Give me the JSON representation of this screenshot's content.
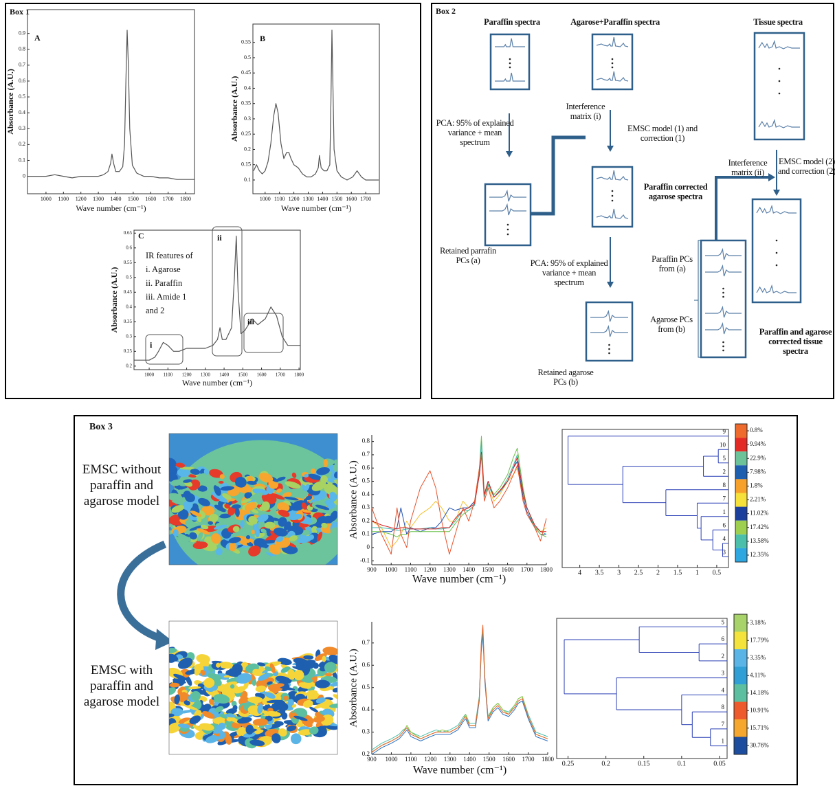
{
  "box_titles": [
    "Box 1",
    "Box 2",
    "Box 3"
  ],
  "diagram": {
    "texts": [
      "Paraffin spectra",
      "Agarose+Paraffin spectra",
      "Tissue spectra",
      "PCA: 95% of explained variance + mean spectrum",
      "Interference matrix (i)",
      "EMSC model (1) and correction (1)",
      "Retained parrafin PCs (a)",
      "Paraffin corrected agarose spectra",
      "PCA: 95% of explained variance + mean spectrum",
      "Retained agarose PCs (b)",
      "Interference matrix (ii)",
      "EMSC model (2) and correction (2)",
      "Paraffin PCs from (a)",
      "Agarose PCs from (b)",
      "Paraffin and agarose corrected tissue spectra"
    ]
  },
  "box3": {
    "before": "EMSC without paraffin and agarose model",
    "after": "EMSC with paraffin and agarose model"
  },
  "chart_data": [
    {
      "type": "line",
      "label": "A",
      "color": "#555555",
      "x": [
        900,
        950,
        1000,
        1050,
        1100,
        1150,
        1200,
        1250,
        1300,
        1330,
        1355,
        1370,
        1378,
        1388,
        1400,
        1420,
        1440,
        1450,
        1458,
        1465,
        1472,
        1480,
        1495,
        1520,
        1560,
        1600,
        1650,
        1700,
        1750,
        1800,
        1850
      ],
      "values": [
        0,
        0,
        0,
        0.01,
        0,
        -0.01,
        0,
        0,
        0,
        0.01,
        0.03,
        0.08,
        0.14,
        0.08,
        0.03,
        0.03,
        0.06,
        0.2,
        0.6,
        0.92,
        0.7,
        0.3,
        0.07,
        0.02,
        0,
        0,
        -0.01,
        -0.01,
        -0.02,
        -0.02,
        -0.02
      ],
      "xlim": [
        894,
        1851
      ],
      "ylim": [
        -0.11,
        1.05
      ],
      "xticks": [
        1000,
        1100,
        1200,
        1300,
        1400,
        1500,
        1600,
        1700,
        1800
      ],
      "yticks": [
        0,
        0.1,
        0.2,
        0.3,
        0.4,
        0.5,
        0.6,
        0.7,
        0.8,
        0.9
      ],
      "xlabel": "Wave number (cm⁻¹)",
      "ylabel": "Absorbance (A.U.)"
    },
    {
      "type": "line",
      "label": "B",
      "color": "#555555",
      "x": [
        920,
        940,
        960,
        980,
        1000,
        1020,
        1040,
        1060,
        1075,
        1090,
        1110,
        1130,
        1150,
        1165,
        1180,
        1200,
        1230,
        1260,
        1290,
        1320,
        1350,
        1370,
        1378,
        1390,
        1410,
        1430,
        1450,
        1458,
        1465,
        1472,
        1480,
        1500,
        1530,
        1570,
        1610,
        1640,
        1670,
        1700,
        1740,
        1790
      ],
      "values": [
        0.13,
        0.15,
        0.13,
        0.12,
        0.13,
        0.16,
        0.22,
        0.31,
        0.35,
        0.32,
        0.22,
        0.17,
        0.19,
        0.19,
        0.17,
        0.15,
        0.14,
        0.12,
        0.11,
        0.11,
        0.12,
        0.14,
        0.18,
        0.14,
        0.13,
        0.13,
        0.15,
        0.35,
        0.59,
        0.4,
        0.2,
        0.13,
        0.11,
        0.1,
        0.11,
        0.13,
        0.11,
        0.1,
        0.1,
        0.1
      ],
      "xlim": [
        915,
        1795
      ],
      "ylim": [
        0.055,
        0.61
      ],
      "xticks": [
        1000,
        1100,
        1200,
        1300,
        1400,
        1500,
        1600,
        1700
      ],
      "yticks": [
        0.1,
        0.15,
        0.2,
        0.25,
        0.3,
        0.35,
        0.4,
        0.45,
        0.5,
        0.55
      ],
      "xlabel": "Wave number (cm⁻¹)",
      "ylabel": "Absorbance (A.U.)"
    },
    {
      "type": "line",
      "label": "C",
      "color": "#555555",
      "x": [
        920,
        960,
        1000,
        1030,
        1050,
        1075,
        1100,
        1130,
        1160,
        1200,
        1250,
        1300,
        1340,
        1365,
        1378,
        1390,
        1410,
        1440,
        1455,
        1465,
        1475,
        1490,
        1510,
        1530,
        1550,
        1580,
        1620,
        1650,
        1680,
        1710,
        1740,
        1780,
        1805
      ],
      "values": [
        0.22,
        0.22,
        0.22,
        0.23,
        0.25,
        0.28,
        0.27,
        0.25,
        0.25,
        0.26,
        0.26,
        0.26,
        0.27,
        0.29,
        0.33,
        0.29,
        0.29,
        0.33,
        0.5,
        0.64,
        0.45,
        0.31,
        0.32,
        0.34,
        0.36,
        0.34,
        0.36,
        0.4,
        0.37,
        0.3,
        0.27,
        0.27,
        0.27
      ],
      "xlim": [
        919,
        1807
      ],
      "ylim": [
        0.188,
        0.66
      ],
      "xticks": [
        1000,
        1100,
        1200,
        1300,
        1400,
        1500,
        1600,
        1700,
        1800
      ],
      "yticks": [
        0.2,
        0.25,
        0.3,
        0.35,
        0.4,
        0.45,
        0.5,
        0.55,
        0.6,
        0.65
      ],
      "xlabel": "Wave number (cm⁻¹)",
      "ylabel": "Absorbance (A.U.)",
      "annotation_lines": [
        "IR features of",
        "i. Agarose",
        "ii. Paraffin",
        "iii. Amide 1",
        "and 2"
      ],
      "regions": [
        "i",
        "ii",
        "iii"
      ]
    },
    {
      "type": "line",
      "x": [
        900,
        950,
        1000,
        1030,
        1050,
        1080,
        1100,
        1150,
        1200,
        1230,
        1260,
        1300,
        1330,
        1370,
        1400,
        1430,
        1455,
        1465,
        1480,
        1500,
        1530,
        1560,
        1600,
        1630,
        1650,
        1680,
        1700,
        1740,
        1770,
        1800
      ],
      "series": [
        {
          "color": "#f2c12e",
          "values": [
            0.2,
            0.15,
            0,
            0.05,
            0.1,
            0.2,
            0.15,
            0.25,
            0.3,
            0.35,
            0.3,
            0.2,
            0.2,
            0.35,
            0.3,
            0.35,
            0.6,
            0.75,
            0.4,
            0.45,
            0.35,
            0.4,
            0.5,
            0.55,
            0.6,
            0.4,
            0.3,
            0.15,
            0.12,
            0.15
          ]
        },
        {
          "color": "#2050b0",
          "values": [
            0.1,
            0.12,
            0.12,
            0.15,
            0.3,
            0.1,
            0.15,
            0.12,
            0.15,
            0.15,
            0.2,
            0.3,
            0.28,
            0.3,
            0.3,
            0.35,
            0.55,
            0.7,
            0.4,
            0.5,
            0.38,
            0.42,
            0.5,
            0.6,
            0.65,
            0.38,
            0.27,
            0.15,
            0.1,
            0.1
          ]
        },
        {
          "color": "#6cc04a",
          "values": [
            0.12,
            0.12,
            0.1,
            0.08,
            0.1,
            0.1,
            0.12,
            0.12,
            0.12,
            0.12,
            0.12,
            0.12,
            0.18,
            0.25,
            0.28,
            0.32,
            0.6,
            0.84,
            0.4,
            0.48,
            0.4,
            0.45,
            0.55,
            0.68,
            0.75,
            0.45,
            0.3,
            0.15,
            0.1,
            0.08
          ]
        },
        {
          "color": "#38b5b0",
          "values": [
            0.15,
            0.15,
            0.14,
            0.13,
            0.13,
            0.14,
            0.14,
            0.14,
            0.15,
            0.14,
            0.14,
            0.15,
            0.2,
            0.28,
            0.28,
            0.32,
            0.58,
            0.8,
            0.38,
            0.47,
            0.38,
            0.42,
            0.52,
            0.62,
            0.7,
            0.42,
            0.3,
            0.16,
            0.12,
            0.1
          ]
        },
        {
          "color": "#d62020",
          "values": [
            0.2,
            0.17,
            0.15,
            0.14,
            0.15,
            0.15,
            0.14,
            0.14,
            0.14,
            0.14,
            0.15,
            0.15,
            0.22,
            0.28,
            0.3,
            0.33,
            0.55,
            0.72,
            0.4,
            0.5,
            0.38,
            0.43,
            0.5,
            0.6,
            0.68,
            0.42,
            0.3,
            0.17,
            0.12,
            0.12
          ]
        },
        {
          "color": "#e8502a",
          "values": [
            0.3,
            0.1,
            -0.05,
            0.3,
            0.1,
            0,
            0.2,
            0.45,
            0.58,
            0.45,
            0.2,
            -0.05,
            0.1,
            0.3,
            0.2,
            0.35,
            0.6,
            0.7,
            0.35,
            0.45,
            0.3,
            0.35,
            0.45,
            0.55,
            0.62,
            0.35,
            0.25,
            0.15,
            0.05,
            0.22
          ]
        }
      ],
      "xlim": [
        900,
        1800
      ],
      "ylim": [
        -0.13,
        0.85
      ],
      "xticks": [
        900,
        1000,
        1100,
        1200,
        1300,
        1400,
        1500,
        1600,
        1700,
        1800
      ],
      "yticks": [
        -0.1,
        0,
        0.1,
        0.2,
        0.3,
        0.4,
        0.5,
        0.6,
        0.7,
        0.8
      ],
      "xlabel": "Wave number (cm⁻¹)",
      "ylabel": "Absorbance (A.U.)"
    },
    {
      "type": "dendrogram",
      "color": "#2a3fb5",
      "leaves": [
        9,
        10,
        5,
        2,
        8,
        7,
        1,
        6,
        4,
        3
      ],
      "merges": [
        [
          1,
          2,
          0.46
        ],
        [
          10,
          3,
          0.84
        ],
        [
          8,
          9,
          0.35
        ],
        [
          7,
          12,
          0.6
        ],
        [
          6,
          13,
          0.9
        ],
        [
          5,
          14,
          1.0
        ],
        [
          4,
          15,
          1.8
        ],
        [
          11,
          16,
          2.9
        ],
        [
          0,
          17,
          4.3
        ]
      ],
      "xlim": [
        4.45,
        0.2
      ],
      "xticks": [
        4,
        3.5,
        3,
        2.5,
        2,
        1.5,
        1,
        0.5
      ]
    },
    {
      "type": "colorbar",
      "colors": [
        "#ef6a2d",
        "#e42a24",
        "#6cc39a",
        "#1f5fb0",
        "#f7a12b",
        "#f6e03a",
        "#1a3f9c",
        "#9fcf4e",
        "#4bbfa9",
        "#2ea7e0"
      ],
      "values": [
        0.8,
        9.94,
        22.9,
        7.98,
        1.8,
        2.21,
        11.02,
        17.42,
        13.58,
        12.35
      ],
      "value_labels": [
        "0.8%",
        "9.94%",
        "22.9%",
        "7.98%",
        "1.8%",
        "2.21%",
        "11.02%",
        "17.42%",
        "13.58%",
        "12.35%"
      ]
    },
    {
      "type": "line",
      "x": [
        900,
        950,
        1000,
        1040,
        1060,
        1080,
        1100,
        1150,
        1200,
        1230,
        1260,
        1300,
        1340,
        1370,
        1380,
        1400,
        1430,
        1450,
        1460,
        1468,
        1478,
        1495,
        1520,
        1545,
        1570,
        1600,
        1630,
        1650,
        1670,
        1700,
        1740,
        1800
      ],
      "series": [
        {
          "color": "#4bbfa9",
          "values": [
            0.22,
            0.25,
            0.27,
            0.29,
            0.31,
            0.32,
            0.3,
            0.28,
            0.3,
            0.31,
            0.3,
            0.31,
            0.33,
            0.37,
            0.38,
            0.34,
            0.34,
            0.46,
            0.68,
            0.76,
            0.54,
            0.37,
            0.41,
            0.43,
            0.4,
            0.39,
            0.42,
            0.45,
            0.46,
            0.38,
            0.3,
            0.28
          ]
        },
        {
          "color": "#2a6fc0",
          "values": [
            0.2,
            0.23,
            0.25,
            0.27,
            0.29,
            0.31,
            0.28,
            0.26,
            0.28,
            0.29,
            0.29,
            0.29,
            0.31,
            0.35,
            0.36,
            0.32,
            0.32,
            0.44,
            0.66,
            0.74,
            0.53,
            0.35,
            0.39,
            0.41,
            0.38,
            0.37,
            0.4,
            0.43,
            0.44,
            0.36,
            0.28,
            0.26
          ]
        },
        {
          "color": "#8cc63f",
          "values": [
            0.21,
            0.24,
            0.26,
            0.28,
            0.3,
            0.33,
            0.3,
            0.27,
            0.29,
            0.3,
            0.31,
            0.3,
            0.32,
            0.36,
            0.38,
            0.33,
            0.33,
            0.45,
            0.69,
            0.77,
            0.55,
            0.36,
            0.41,
            0.43,
            0.4,
            0.38,
            0.42,
            0.45,
            0.46,
            0.37,
            0.29,
            0.27
          ]
        },
        {
          "color": "#e8602a",
          "values": [
            0.21,
            0.24,
            0.26,
            0.28,
            0.3,
            0.32,
            0.29,
            0.27,
            0.29,
            0.3,
            0.3,
            0.3,
            0.32,
            0.36,
            0.37,
            0.33,
            0.33,
            0.45,
            0.7,
            0.78,
            0.55,
            0.36,
            0.4,
            0.42,
            0.39,
            0.38,
            0.41,
            0.44,
            0.45,
            0.37,
            0.29,
            0.27
          ]
        }
      ],
      "xlim": [
        900,
        1800
      ],
      "ylim": [
        0.2,
        0.795
      ],
      "xticks": [
        900,
        1000,
        1100,
        1200,
        1300,
        1400,
        1500,
        1600,
        1700,
        1800
      ],
      "yticks": [
        0.2,
        0.3,
        0.4,
        0.5,
        0.6,
        0.7
      ],
      "xlabel": "Wave number (cm⁻¹)",
      "ylabel": "Absorbance (A.U.)"
    },
    {
      "type": "dendrogram",
      "color": "#2a3fb5",
      "leaves": [
        5,
        6,
        2,
        3,
        4,
        8,
        7,
        1
      ],
      "merges": [
        [
          1,
          2,
          0.077
        ],
        [
          0,
          8,
          0.156
        ],
        [
          6,
          7,
          0.062
        ],
        [
          5,
          10,
          0.086
        ],
        [
          4,
          11,
          0.1
        ],
        [
          3,
          12,
          0.186
        ],
        [
          9,
          13,
          0.255
        ]
      ],
      "xlim": [
        0.265,
        0.04
      ],
      "xticks": [
        0.25,
        0.2,
        0.15,
        0.1,
        0.05
      ]
    },
    {
      "type": "colorbar",
      "colors": [
        "#a8d36a",
        "#f3e33a",
        "#5ab4e6",
        "#2f9fd6",
        "#5cc0a0",
        "#ee5a2b",
        "#f6a72d",
        "#1d4d9e"
      ],
      "values": [
        3.18,
        17.79,
        3.35,
        4.11,
        14.18,
        10.91,
        15.71,
        30.76
      ],
      "value_labels": [
        "3.18%",
        "17.79%",
        "3.35%",
        "4.11%",
        "14.18%",
        "10.91%",
        "15.71%",
        "30.76%"
      ]
    }
  ]
}
